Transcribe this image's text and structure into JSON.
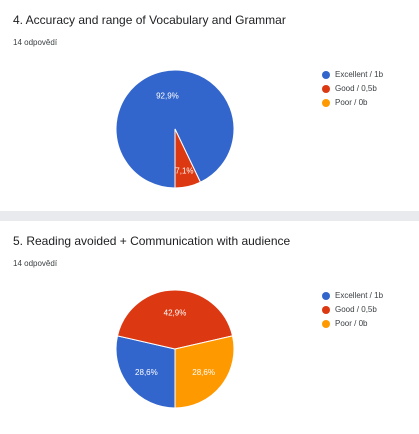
{
  "questions": [
    {
      "title": "4. Accuracy and range of Vocabulary and Grammar",
      "responses": "14 odpovědí"
    },
    {
      "title": "5. Reading avoided + Communication with audience",
      "responses": "14 odpovědí"
    }
  ],
  "chart_data": [
    {
      "type": "pie",
      "categories": [
        "Excellent / 1b",
        "Good / 0,5b",
        "Poor / 0b"
      ],
      "values": [
        92.9,
        7.1,
        0
      ],
      "data_labels": [
        "92,9%",
        "7,1%",
        ""
      ],
      "colors": [
        "#3366cc",
        "#dc3912",
        "#ff9900"
      ],
      "legend_position": "right"
    },
    {
      "type": "pie",
      "categories": [
        "Excellent / 1b",
        "Good / 0,5b",
        "Poor / 0b"
      ],
      "values": [
        28.6,
        42.9,
        28.6
      ],
      "data_labels": [
        "28,6%",
        "42,9%",
        "28,6%"
      ],
      "colors": [
        "#3366cc",
        "#dc3912",
        "#ff9900"
      ],
      "legend_position": "right"
    }
  ]
}
